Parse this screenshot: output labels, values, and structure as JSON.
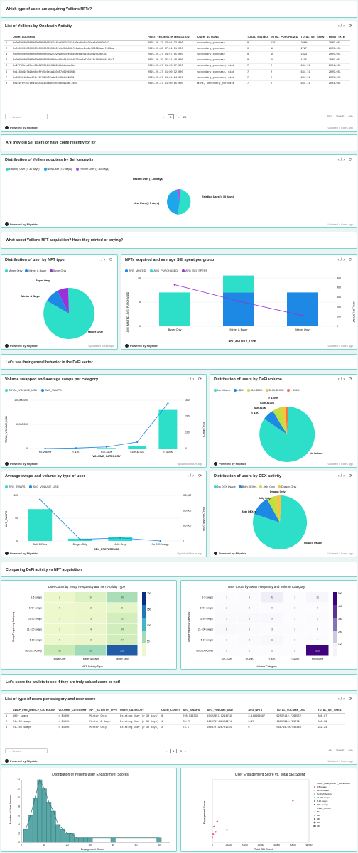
{
  "q1": "Which type of users are acquiring Yeiliens NFTs?",
  "table1": {
    "title": "List of Yeiliens by Onchcain Activity",
    "columns": [
      "USER_ADDRESS",
      "FIRST_YEILIENS_INTERACTION",
      "USER_ACTIONS",
      "TOTAL_MINTED",
      "TOTAL_PURCHASED",
      "TOTAL_SEI_SPENT",
      "FIRST_TX_E"
    ],
    "rows": [
      [
        "1",
        "0x0000000000000000000006ff5cfbcf65032934f6ad6b6bb7fea0e9885b932",
        "2025-05-27 13:01:33.000",
        "secondary_purchase",
        "0",
        "136",
        "20604",
        "2025-05-"
      ],
      [
        "2",
        "0x0000000000000000000000008622d1d5db8d8f01abcb4ca6c726095abcf4b3ca",
        "2025-05-28 07:01:31.000",
        "secondary_purchase",
        "0",
        "18",
        "2727",
        "2025-05-"
      ],
      [
        "3",
        "0x0000000000000000000000a2729098f5beeb6d5ecba761681dd9558b736",
        "2025-05-27 14:57:55.000",
        "secondary_purchase",
        "0",
        "16",
        "2424",
        "2025-05-"
      ],
      [
        "4",
        "0x00000000000000000000000086b6b9df4d4e8d5234a7a739d12b18d8cb811fa7",
        "2025-05-29 15:31:48.000",
        "secondary_purchase",
        "0",
        "10",
        "1515",
        "2025-05-"
      ],
      [
        "5",
        "0x97765b4e25ee04b3255514e54b281b8da4ab5bc",
        "2025-05-27 11:05:37.000",
        "secondary_purchase, mint",
        "7",
        "2",
        "634.71",
        "2024-05-"
      ],
      [
        "6",
        "0x1168e9e7b9be8be5fc5c6e5a6a0857d6296358b",
        "2025-05-27 11:00:32.000",
        "secondary_purchase, mint",
        "7",
        "2",
        "634.71",
        "2025-05-"
      ],
      [
        "7",
        "0x2d015132ac421cf6f565b52a6a26f68dd09359",
        "2025-05-27 11:01:24.000",
        "secondary_purchase, mint",
        "7",
        "2",
        "634.71",
        "2025-05-"
      ],
      [
        "8",
        "0x1c9f6f4078ea125d1a358aac79b35bd91daf749d",
        "2025-05-27 11:00:15.000",
        "mint, secondary_purchase",
        "7",
        "2",
        "634.71",
        "2024-09-"
      ]
    ],
    "search_placeholder": "Search",
    "pages": [
      "1",
      "26"
    ],
    "row_count": "650",
    "export": "TMME",
    "duration": "65s"
  },
  "powered": "Powered by Flipside",
  "updated": "Updated 4 hours ago",
  "q2": "Are they old Sei users or have come recently for it?",
  "longevity": {
    "title": "Distribution of Yeilien adopters by Sei longevity",
    "legend": [
      "Existing User (> 30 days)",
      "New User (< 7 days)",
      "Recent User (7-30 days)"
    ],
    "labels": [
      "Existing User (> 30 days)",
      "New User (< 7 days)",
      "Recent User (7-30 days)"
    ],
    "colors": [
      "#2ddec8",
      "#1ea7e8",
      "#9b5de5"
    ]
  },
  "q3": "What about Yeiliens NFT acquisition? Have they minted or buying?",
  "nfttype": {
    "title": "Distribution of user by NFT type",
    "legend": [
      "Minter Only",
      "Minter & Buyer",
      "Buyer Only"
    ],
    "labels": [
      "Buyer Only",
      "Minter & Buyer",
      "Minter Only"
    ],
    "colors": [
      "#2ddec8",
      "#1e88e5",
      "#9b30d9"
    ]
  },
  "nftacq": {
    "title": "NFTs acquired and average SEI spent per group",
    "legend": [
      "AVG_MINTED",
      "AVG_PURCHASED",
      "AVG_SEI_SPENT"
    ],
    "xlabel": "NFT_ACTIVITY_TYPE",
    "ylabel": "AVG_MINTED, AVG_PURCHASED",
    "y2label": "AVG_SEI_SPENT",
    "yticks": [
      "0",
      "5",
      "10"
    ],
    "y2ticks": [
      "0",
      "100",
      "200",
      "300",
      "400",
      "500"
    ]
  },
  "q4": "Let's see their general behavior in the DeFi sector",
  "volswaps": {
    "title": "Volume swapped and average swaps per category",
    "legend": [
      "TOTAL_VOLUME_USD",
      "AVG_SWAPS"
    ],
    "xlabel": "VOLUME_CATEGORY",
    "ylabel": "TOTAL_VOLUME_USD",
    "y2label": "AVG_SWAPS",
    "yticks": [
      "0",
      "50,000,000",
      "100,000,000"
    ],
    "y2ticks": [
      "0",
      "100",
      "200",
      "300"
    ]
  },
  "defivol": {
    "title": "Distribution of users by DeFi volume",
    "legend": [
      "No Volume",
      "< $1K",
      "$1K-$10K",
      "$10K-$100K",
      "> $100K"
    ],
    "labels": [
      "> $100K",
      "$10K-$100K",
      "$1K-$10K",
      "< $1K",
      "No Volume"
    ],
    "colors": [
      "#2ddec8",
      "#1e88e5",
      "#c0e040",
      "#f4c542",
      "#f4743b"
    ]
  },
  "avgswaps": {
    "title": "Average swaps and volume by type of user",
    "legend": [
      "AVG_SWAPS",
      "AVG_VOLUME_USD"
    ],
    "xlabel": "DEX_PREFERENCE",
    "ylabel": "AVG_SWAPS",
    "y2label": "AVG_VOLUME_USD",
    "yticks": [
      "0",
      "50",
      "100"
    ],
    "y2ticks": [
      "0",
      "300,000",
      "600,000",
      "900,000"
    ]
  },
  "dexact": {
    "title": "Distribution of users by DEX activity",
    "legend": [
      "No DEX Usage",
      "Both DEXes",
      "Jelly Only",
      "Dragon Only"
    ],
    "labels": [
      "Dragon Only",
      "Jelly Only",
      "Both DEXes",
      "No DEX Usage"
    ],
    "colors": [
      "#2ddec8",
      "#1e88e5",
      "#c0e040",
      "#f4c542"
    ]
  },
  "q5": "Comparing DeFi activity vs NFT acquisition",
  "heat1": {
    "title": "User Count by Swap Frequency and NFT Activity Type",
    "rows": [
      "1-5 swaps",
      "100+ swaps",
      "11-20 swaps",
      "21-100 swaps",
      "6-10 swaps",
      "No DEX Activity"
    ],
    "cols": [
      "Buyer Only",
      "Minter & Buyer",
      "Minter Only"
    ],
    "xlabel": "NFT Activity Type",
    "ylabel": "Swap Frequency Category",
    "scale": [
      "200",
      "150",
      "100",
      "50"
    ]
  },
  "heat2": {
    "title": "User Count by Swap Frequency and Volume Category",
    "rows": [
      "1-5 swaps",
      "100+ swaps",
      "11-20 swaps",
      "21-100 swaps",
      "6-10 swaps",
      "No DEX Activity"
    ],
    "cols": [
      "10K-100K",
      "1K-10K",
      "< $1K",
      "> $100K",
      "No Volume"
    ],
    "xlabel": "Volume Category",
    "ylabel": "Swap Frequency Category",
    "scale": [
      "500",
      "400",
      "300",
      "200",
      "100"
    ]
  },
  "q6": "Let's score the wallets to see if they are truly valued users or not!",
  "table2": {
    "title": "List of type of users per category and user score",
    "columns": [
      "SWAP_FREQUENCY_CATEGORY",
      "VOLUME_CATEGORY",
      "NFT_ACTIVITY_TYPE",
      "USER_CATEGORY",
      "USER_COUNT",
      "AVG_SWAPS",
      "AVG_VOLUME_USD",
      "AVG_NFTS",
      "TOTAL_VOLUME_USD",
      "TOTAL_SEI_SPENT"
    ],
    "rows": [
      [
        "1",
        "100+ swaps",
        "> $100K",
        "Minter Only",
        "Existing User (> 30 days)",
        "6",
        "765.833333",
        "10422857.1294759",
        "3.166666667",
        "62537142.7768552",
        "886.87"
      ],
      [
        "2",
        "21-100 swaps",
        "> $100K",
        "Minter & Buyer",
        "Existing User (> 30 days)",
        "4",
        "55.75",
        "4200747.68126974",
        "3.25",
        "16802990.725079",
        "508.09"
      ],
      [
        "3",
        "21-100 swaps",
        "> $100K",
        "Minter Only",
        "Existing User (> 30 days)",
        "2",
        "73.5",
        "280872.328721234",
        "6",
        "561744.657442468",
        "942.24"
      ]
    ],
    "search_placeholder": "Search",
    "pages": [
      "1",
      "3"
    ],
    "row_count": "45",
    "export": "TMME",
    "duration": "60s"
  },
  "hist": {
    "title": "Distribution of Yeiliens User Engagement Scores",
    "xlabel": "Engagement Score",
    "ylabel": "Number of User Groups",
    "xticks": [
      "0",
      "10",
      "20",
      "30",
      "40",
      "50",
      "60"
    ],
    "yticks": [
      "0",
      "2",
      "4",
      "6",
      "8",
      "10",
      "12",
      "14"
    ]
  },
  "scatter": {
    "title": "User Engagement Score vs. Total SEI Spent",
    "xlabel": "Total SEI Spent",
    "ylabel": "Engagement Score",
    "xticks": [
      "0",
      "10000",
      "20000",
      "30000",
      "40000",
      "50000",
      "60000"
    ],
    "legend": [
      "SWAP_FREQUENCY_CATEGORY",
      "1-5 swaps",
      "11-20 swaps",
      "No DEX Activity",
      "21-100 swaps",
      "6-10 swaps",
      "100+ swaps",
      "USER_COUNT",
      "50",
      "100",
      "150",
      "200",
      "250"
    ]
  },
  "chart_data": [
    {
      "type": "pie",
      "title": "Distribution of Yeilien adopters by Sei longevity",
      "categories": [
        "Existing User (> 30 days)",
        "New User (< 7 days)",
        "Recent User (7-30 days)"
      ],
      "values": [
        51,
        45,
        4
      ]
    },
    {
      "type": "pie",
      "title": "Distribution of user by NFT type",
      "categories": [
        "Minter Only",
        "Minter & Buyer",
        "Buyer Only"
      ],
      "values": [
        74,
        19,
        7
      ]
    },
    {
      "type": "bar",
      "title": "NFTs acquired and average SEI spent per group",
      "categories": [
        "Buyer Only",
        "Minter & Buyer",
        "Minter Only"
      ],
      "series": [
        {
          "name": "AVG_MINTED",
          "values": [
            0,
            7,
            7
          ]
        },
        {
          "name": "AVG_PURCHASED",
          "values": [
            7,
            3.5,
            0
          ]
        },
        {
          "name": "AVG_SEI_SPENT",
          "values": [
            430,
            260,
            110
          ]
        }
      ],
      "ylim": [
        0,
        10
      ],
      "y2lim": [
        0,
        500
      ]
    },
    {
      "type": "bar",
      "title": "Volume swapped and average swaps per category",
      "categories": [
        "No Volume",
        "< $1K",
        "$1K-$10K",
        "$10K-$100K",
        "> $100K"
      ],
      "series": [
        {
          "name": "TOTAL_VOLUME_USD",
          "values": [
            0,
            100000,
            1000000,
            5000000,
            80000000
          ]
        },
        {
          "name": "AVG_SWAPS",
          "values": [
            0,
            3,
            10,
            40,
            280
          ]
        }
      ],
      "ylim": [
        0,
        100000000
      ],
      "y2lim": [
        0,
        300
      ]
    },
    {
      "type": "pie",
      "title": "Distribution of users by DeFi volume",
      "categories": [
        "No Volume",
        "< $1K",
        "$1K-$10K",
        "$10K-$100K",
        "> $100K"
      ],
      "values": [
        72,
        10,
        8,
        6,
        4
      ]
    },
    {
      "type": "bar",
      "title": "Average swaps and volume by type of user",
      "categories": [
        "Both DEXes",
        "Dragon Only",
        "Jelly Only",
        "No DEX Usage"
      ],
      "series": [
        {
          "name": "AVG_SWAPS",
          "values": [
            70,
            5,
            9,
            0
          ]
        },
        {
          "name": "AVG_VOLUME_USD",
          "values": [
            820000,
            30000,
            60000,
            0
          ]
        }
      ],
      "ylim": [
        0,
        100
      ],
      "y2lim": [
        0,
        900000
      ]
    },
    {
      "type": "pie",
      "title": "Distribution of users by DEX activity",
      "categories": [
        "No DEX Usage",
        "Both DEXes",
        "Jelly Only",
        "Dragon Only"
      ],
      "values": [
        80,
        13,
        4,
        3
      ]
    },
    {
      "type": "heatmap",
      "title": "User Count by Swap Frequency and NFT Activity Type",
      "rows": [
        "1-5 swaps",
        "100+ swaps",
        "11-20 swaps",
        "21-100 swaps",
        "6-10 swaps",
        "No DEX Activity"
      ],
      "cols": [
        "Buyer Only",
        "Minter & Buyer",
        "Minter Only"
      ],
      "values": [
        [
          2,
          14,
          50
        ],
        [
          0,
          2,
          8
        ],
        [
          1,
          3,
          22
        ],
        [
          1,
          4,
          24
        ],
        [
          0,
          3,
          24
        ],
        [
          30,
          56,
          217
        ]
      ]
    },
    {
      "type": "heatmap",
      "title": "User Count by Swap Frequency and Volume Category",
      "rows": [
        "1-5 swaps",
        "100+ swaps",
        "11-20 swaps",
        "21-100 swaps",
        "6-10 swaps",
        "No DEX Activity"
      ],
      "cols": [
        "10K-100K",
        "1K-10K",
        "< $1K",
        "> $100K",
        "No Volume"
      ],
      "values": [
        [
          1,
          3,
          42,
          1,
          15
        ],
        [
          2,
          3,
          0,
          1,
          0
        ],
        [
          5,
          8,
          9,
          1,
          2
        ],
        [
          8,
          6,
          3,
          3,
          0
        ],
        [
          1,
          5,
          12,
          1,
          4
        ],
        [
          0,
          0,
          0,
          0,
          533
        ]
      ]
    },
    {
      "type": "bar",
      "title": "Distribution of Yeiliens User Engagement Scores",
      "x": [
        2,
        4,
        6,
        8,
        10,
        12,
        14,
        16,
        18,
        20,
        22,
        24,
        26,
        28,
        30,
        40,
        60
      ],
      "values": [
        3,
        6,
        10,
        14,
        12,
        9,
        7,
        4,
        3,
        2,
        2,
        1,
        1,
        1,
        1,
        1,
        1
      ],
      "xlabel": "Engagement Score",
      "ylabel": "Number of User Groups"
    },
    {
      "type": "scatter",
      "title": "User Engagement Score vs. Total SEI Spent",
      "x": [
        100,
        500,
        1000,
        2000,
        3000,
        9000,
        50000
      ],
      "y": [
        5,
        8,
        15,
        10,
        20,
        12,
        40
      ],
      "xlabel": "Total SEI Spent",
      "ylabel": "Engagement Score"
    }
  ]
}
